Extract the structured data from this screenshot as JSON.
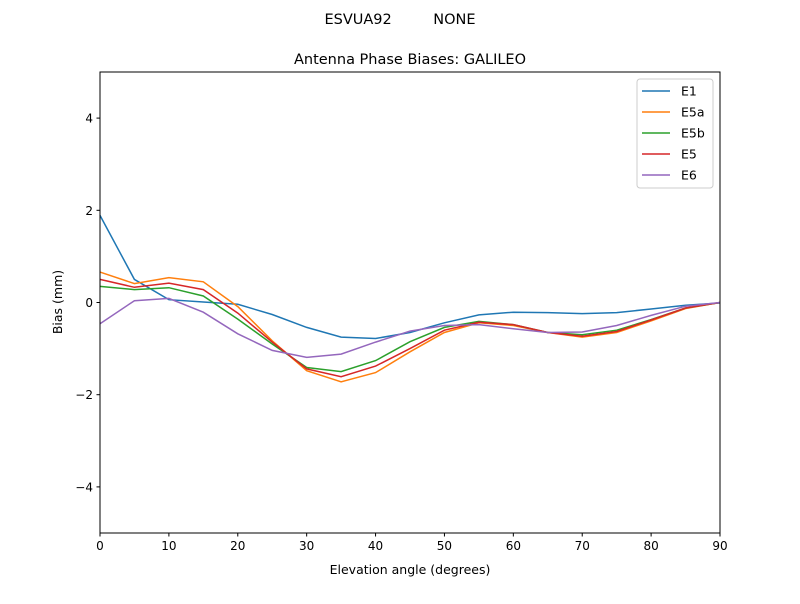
{
  "chart_data": {
    "type": "line",
    "suptitle": "ESVUA92         NONE",
    "title": "Antenna Phase Biases: GALILEO",
    "xlabel": "Elevation angle (degrees)",
    "ylabel": "Bias (mm)",
    "xlim": [
      0,
      90
    ],
    "ylim": [
      -5,
      5
    ],
    "xticks": [
      0,
      10,
      20,
      30,
      40,
      50,
      60,
      70,
      80,
      90
    ],
    "yticks": [
      -4,
      -2,
      0,
      2,
      4
    ],
    "ytick_labels": [
      "−4",
      "−2",
      "0",
      "2",
      "4"
    ],
    "grid": false,
    "legend_position": "top-right",
    "x": [
      0,
      5,
      10,
      15,
      20,
      25,
      30,
      35,
      40,
      45,
      50,
      55,
      60,
      65,
      70,
      75,
      80,
      85,
      90
    ],
    "series": [
      {
        "name": "E1",
        "color": "#1f77b4",
        "values": [
          1.89,
          0.5,
          0.06,
          0.01,
          -0.04,
          -0.26,
          -0.54,
          -0.75,
          -0.78,
          -0.65,
          -0.44,
          -0.27,
          -0.21,
          -0.22,
          -0.24,
          -0.22,
          -0.14,
          -0.06,
          -0.01
        ]
      },
      {
        "name": "E5a",
        "color": "#ff7f0e",
        "values": [
          0.66,
          0.41,
          0.54,
          0.45,
          -0.09,
          -0.83,
          -1.48,
          -1.72,
          -1.52,
          -1.07,
          -0.65,
          -0.44,
          -0.5,
          -0.65,
          -0.75,
          -0.65,
          -0.4,
          -0.13,
          0.0
        ]
      },
      {
        "name": "E5b",
        "color": "#2ca02c",
        "values": [
          0.35,
          0.28,
          0.32,
          0.14,
          -0.36,
          -0.9,
          -1.41,
          -1.5,
          -1.26,
          -0.85,
          -0.54,
          -0.41,
          -0.48,
          -0.65,
          -0.7,
          -0.6,
          -0.37,
          -0.12,
          0.0
        ]
      },
      {
        "name": "E5",
        "color": "#d62728",
        "values": [
          0.5,
          0.33,
          0.42,
          0.28,
          -0.23,
          -0.86,
          -1.44,
          -1.61,
          -1.38,
          -1.0,
          -0.6,
          -0.43,
          -0.48,
          -0.65,
          -0.73,
          -0.63,
          -0.38,
          -0.12,
          0.0
        ]
      },
      {
        "name": "E6",
        "color": "#9467bd",
        "values": [
          -0.46,
          0.04,
          0.09,
          -0.21,
          -0.68,
          -1.04,
          -1.19,
          -1.12,
          -0.86,
          -0.62,
          -0.5,
          -0.48,
          -0.57,
          -0.65,
          -0.64,
          -0.5,
          -0.28,
          -0.08,
          0.0
        ]
      }
    ]
  }
}
